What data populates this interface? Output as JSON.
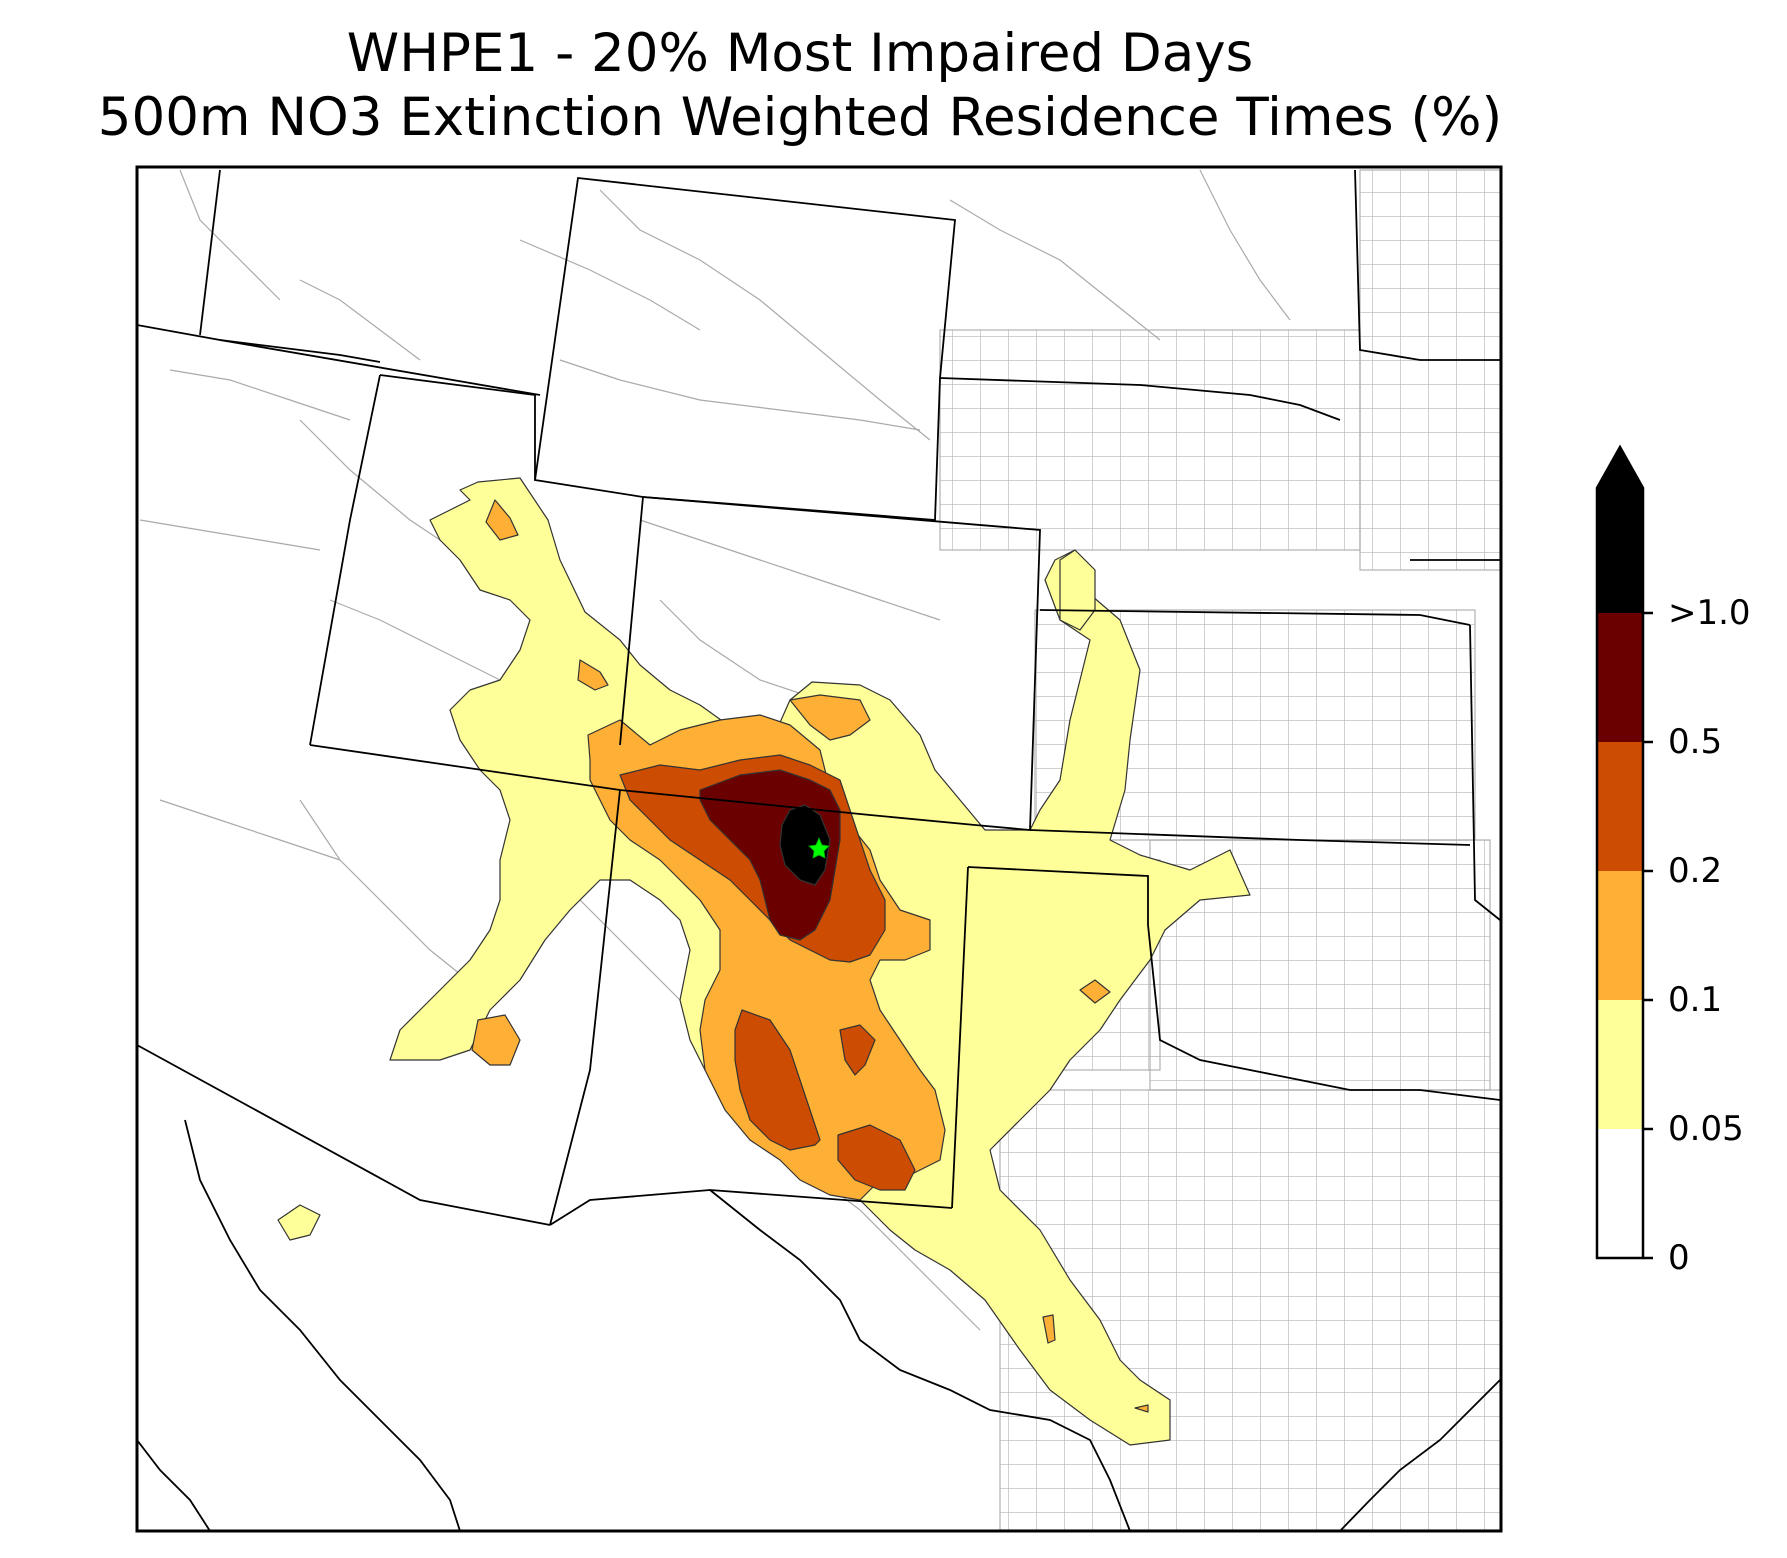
{
  "title": {
    "line1": "WHPE1 - 20% Most Impaired Days",
    "line2": "500m NO3 Extinction Weighted Residence Times (%)"
  },
  "colorbar": {
    "levels": [
      {
        "label": "0",
        "color": "#ffffff"
      },
      {
        "label": "0.05",
        "color": "#ffff99"
      },
      {
        "label": "0.1",
        "color": "#fdb035"
      },
      {
        "label": "0.2",
        "color": "#cc4c02"
      },
      {
        "label": "0.5",
        "color": "#6b0000"
      },
      {
        "label": ">1.0",
        "color": "#000000"
      }
    ],
    "extend": "max"
  },
  "colors": {
    "state_border": "#000000",
    "county_border": "#aaaaaa",
    "site_marker": "#00ff00"
  },
  "site_marker": {
    "symbol": "star",
    "color": "#00ff00"
  }
}
